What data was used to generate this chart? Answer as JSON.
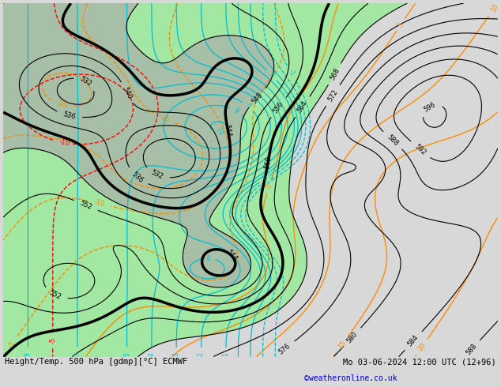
{
  "title_left": "Height/Temp. 500 hPa [gdmp][°C] ECMWF",
  "title_right": "Mo 03-06-2024 12:00 UTC (12+96)",
  "credit": "©weatheronline.co.uk",
  "credit_color": "#0000cc",
  "background_color": "#d8d8d8",
  "green_fill_color": "#90ee90",
  "gray_fill_color": "#aaaaaa",
  "contour_color_black": "#000000",
  "contour_color_orange": "#ff8c00",
  "contour_color_red": "#ff0000",
  "contour_color_cyan": "#00bcd4",
  "figsize": [
    6.34,
    4.9
  ],
  "dpi": 100
}
